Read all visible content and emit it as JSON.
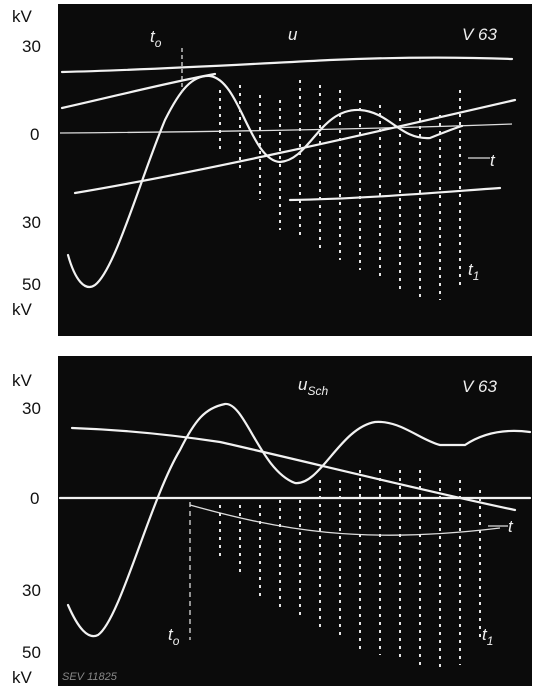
{
  "top_panel": {
    "axis_labels": {
      "unit_top": "kV",
      "upper": "30",
      "zero": "0",
      "lower": "30",
      "lower_far": "50",
      "unit_bottom": "kV"
    },
    "signal": "u",
    "code": "V 63",
    "t0": {
      "text": "t",
      "sub": "o"
    },
    "t1": {
      "text": "t",
      "sub": "1"
    },
    "time": "t"
  },
  "bottom_panel": {
    "axis_labels": {
      "unit_top": "kV",
      "upper": "30",
      "zero": "0",
      "lower": "30",
      "lower_far": "50",
      "unit_bottom": "kV"
    },
    "signal": {
      "text": "u",
      "sub": "Sch"
    },
    "code": "V 63",
    "t0": {
      "text": "t",
      "sub": "o"
    },
    "t1": {
      "text": "t",
      "sub": "1"
    },
    "time": "t"
  },
  "footer": {
    "reference": "SEV 11825"
  }
}
